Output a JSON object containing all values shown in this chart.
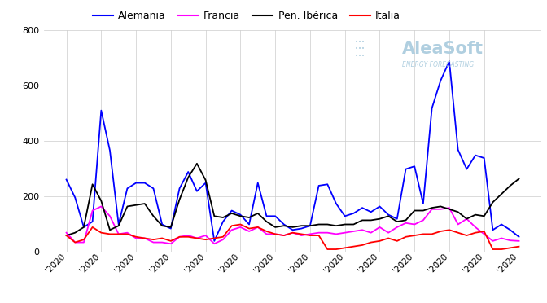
{
  "legend": [
    "Alemania",
    "Francia",
    "Pen. Ibérica",
    "Italia"
  ],
  "colors": [
    "#0000ff",
    "#ff00ff",
    "#000000",
    "#ff0000"
  ],
  "ylim": [
    0,
    800
  ],
  "yticks": [
    0,
    200,
    400,
    600,
    800
  ],
  "background_color": "#ffffff",
  "grid_color": "#cccccc",
  "watermark_text1": "AleaSoft",
  "watermark_text2": "ENERGY FORECASTING",
  "watermark_color": "#b0cfe0",
  "alemania": [
    260,
    195,
    88,
    108,
    510,
    365,
    98,
    228,
    248,
    248,
    228,
    98,
    83,
    228,
    288,
    218,
    248,
    38,
    108,
    148,
    133,
    98,
    248,
    128,
    128,
    98,
    78,
    83,
    93,
    238,
    243,
    173,
    128,
    138,
    158,
    143,
    163,
    133,
    118,
    298,
    308,
    173,
    518,
    618,
    688,
    368,
    298,
    348,
    338,
    78,
    98,
    78,
    53
  ],
  "francia": [
    68,
    33,
    33,
    148,
    163,
    128,
    63,
    68,
    48,
    48,
    33,
    33,
    28,
    53,
    58,
    48,
    58,
    28,
    43,
    78,
    88,
    73,
    88,
    63,
    63,
    58,
    68,
    58,
    63,
    68,
    68,
    63,
    68,
    73,
    78,
    68,
    88,
    68,
    88,
    103,
    98,
    113,
    153,
    153,
    158,
    98,
    118,
    88,
    63,
    38,
    48,
    40,
    38
  ],
  "pen_iberica": [
    58,
    68,
    88,
    243,
    183,
    78,
    93,
    163,
    168,
    173,
    128,
    93,
    88,
    188,
    268,
    318,
    258,
    128,
    123,
    138,
    128,
    123,
    138,
    108,
    88,
    93,
    88,
    93,
    93,
    98,
    98,
    93,
    98,
    98,
    113,
    113,
    118,
    128,
    108,
    113,
    148,
    148,
    158,
    163,
    153,
    143,
    118,
    133,
    128,
    178,
    208,
    238,
    263
  ],
  "italia": [
    58,
    33,
    43,
    88,
    68,
    63,
    63,
    63,
    53,
    48,
    43,
    48,
    38,
    53,
    53,
    48,
    43,
    48,
    53,
    93,
    98,
    83,
    88,
    73,
    63,
    58,
    68,
    63,
    58,
    58,
    8,
    8,
    13,
    18,
    23,
    33,
    38,
    48,
    38,
    53,
    58,
    63,
    63,
    73,
    78,
    68,
    58,
    68,
    73,
    8,
    8,
    13,
    18
  ],
  "n_points": 53,
  "tick_step": 4,
  "xlabel_rotation": 45
}
